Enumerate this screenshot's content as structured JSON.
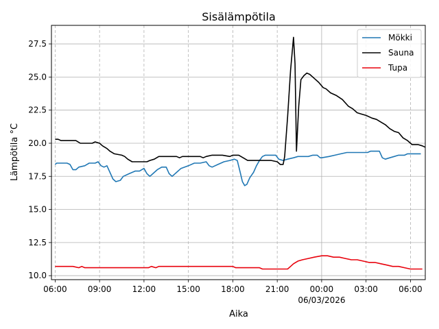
{
  "chart_data": {
    "type": "line",
    "title": "Sisälämpötila",
    "xlabel": "Aika",
    "ylabel": "Lämpötila °C",
    "x_unit": "hours from 06/03/2026 00:00 (negative = previous day)",
    "xlim": [
      -18.25,
      7.0
    ],
    "ylim": [
      9.7,
      28.9
    ],
    "grid": true,
    "legend_position": "top-right",
    "x_major_ticks": [
      {
        "x": -18,
        "label": "06:00"
      },
      {
        "x": -15,
        "label": "09:00"
      },
      {
        "x": -12,
        "label": "12:00"
      },
      {
        "x": -9,
        "label": "15:00"
      },
      {
        "x": -6,
        "label": "18:00"
      },
      {
        "x": -3,
        "label": "21:00"
      },
      {
        "x": 0,
        "label": "00:00",
        "sublabel": "06/03/2026"
      },
      {
        "x": 3,
        "label": "03:00"
      },
      {
        "x": 6,
        "label": "06:00"
      }
    ],
    "y_ticks": [
      10.0,
      12.5,
      15.0,
      17.5,
      20.0,
      22.5,
      25.0,
      27.5
    ],
    "y_tick_labels": [
      "10.0",
      "12.5",
      "15.0",
      "17.5",
      "20.0",
      "22.5",
      "25.0",
      "27.5"
    ],
    "series": [
      {
        "name": "Mökki",
        "color": "#1f77b4",
        "points": [
          [
            -18.0,
            18.4
          ],
          [
            -17.9,
            18.5
          ],
          [
            -17.2,
            18.5
          ],
          [
            -17.0,
            18.4
          ],
          [
            -16.8,
            18.0
          ],
          [
            -16.6,
            18.0
          ],
          [
            -16.4,
            18.2
          ],
          [
            -16.0,
            18.3
          ],
          [
            -15.7,
            18.5
          ],
          [
            -15.3,
            18.5
          ],
          [
            -15.1,
            18.6
          ],
          [
            -14.9,
            18.3
          ],
          [
            -14.7,
            18.2
          ],
          [
            -14.5,
            18.3
          ],
          [
            -14.3,
            17.8
          ],
          [
            -14.1,
            17.3
          ],
          [
            -13.9,
            17.1
          ],
          [
            -13.6,
            17.2
          ],
          [
            -13.4,
            17.5
          ],
          [
            -13.0,
            17.7
          ],
          [
            -12.6,
            17.9
          ],
          [
            -12.3,
            17.9
          ],
          [
            -12.0,
            18.1
          ],
          [
            -11.8,
            17.7
          ],
          [
            -11.6,
            17.5
          ],
          [
            -11.4,
            17.7
          ],
          [
            -11.1,
            18.0
          ],
          [
            -10.8,
            18.2
          ],
          [
            -10.5,
            18.2
          ],
          [
            -10.3,
            17.7
          ],
          [
            -10.1,
            17.5
          ],
          [
            -9.8,
            17.8
          ],
          [
            -9.5,
            18.1
          ],
          [
            -9.0,
            18.3
          ],
          [
            -8.6,
            18.5
          ],
          [
            -8.2,
            18.5
          ],
          [
            -7.8,
            18.6
          ],
          [
            -7.6,
            18.3
          ],
          [
            -7.4,
            18.2
          ],
          [
            -7.0,
            18.4
          ],
          [
            -6.6,
            18.6
          ],
          [
            -6.2,
            18.7
          ],
          [
            -5.9,
            18.8
          ],
          [
            -5.7,
            18.7
          ],
          [
            -5.5,
            17.8
          ],
          [
            -5.35,
            17.1
          ],
          [
            -5.2,
            16.8
          ],
          [
            -5.05,
            16.9
          ],
          [
            -4.85,
            17.4
          ],
          [
            -4.6,
            17.8
          ],
          [
            -4.4,
            18.3
          ],
          [
            -4.2,
            18.7
          ],
          [
            -4.0,
            19.0
          ],
          [
            -3.8,
            19.1
          ],
          [
            -3.1,
            19.1
          ],
          [
            -2.9,
            18.8
          ],
          [
            -2.6,
            18.7
          ],
          [
            -2.3,
            18.8
          ],
          [
            -1.9,
            18.9
          ],
          [
            -1.6,
            19.0
          ],
          [
            -0.9,
            19.0
          ],
          [
            -0.6,
            19.1
          ],
          [
            -0.3,
            19.1
          ],
          [
            -0.1,
            18.9
          ],
          [
            0.0,
            18.9
          ],
          [
            0.5,
            19.0
          ],
          [
            0.9,
            19.1
          ],
          [
            1.3,
            19.2
          ],
          [
            1.7,
            19.3
          ],
          [
            2.0,
            19.3
          ],
          [
            3.1,
            19.3
          ],
          [
            3.3,
            19.4
          ],
          [
            3.9,
            19.4
          ],
          [
            4.1,
            18.9
          ],
          [
            4.3,
            18.8
          ],
          [
            4.6,
            18.9
          ],
          [
            4.9,
            19.0
          ],
          [
            5.2,
            19.1
          ],
          [
            5.6,
            19.1
          ],
          [
            5.8,
            19.2
          ],
          [
            6.4,
            19.2
          ],
          [
            6.7,
            19.2
          ]
        ]
      },
      {
        "name": "Sauna",
        "color": "#000000",
        "points": [
          [
            -18.0,
            20.3
          ],
          [
            -17.8,
            20.3
          ],
          [
            -17.6,
            20.2
          ],
          [
            -16.6,
            20.2
          ],
          [
            -16.3,
            20.0
          ],
          [
            -15.5,
            20.0
          ],
          [
            -15.3,
            20.1
          ],
          [
            -15.0,
            20.0
          ],
          [
            -14.8,
            19.8
          ],
          [
            -14.5,
            19.6
          ],
          [
            -14.3,
            19.4
          ],
          [
            -14.0,
            19.2
          ],
          [
            -13.5,
            19.1
          ],
          [
            -13.3,
            19.0
          ],
          [
            -13.1,
            18.8
          ],
          [
            -12.8,
            18.6
          ],
          [
            -12.4,
            18.6
          ],
          [
            -11.8,
            18.6
          ],
          [
            -11.6,
            18.7
          ],
          [
            -11.3,
            18.8
          ],
          [
            -11.0,
            19.0
          ],
          [
            -9.8,
            19.0
          ],
          [
            -9.6,
            18.9
          ],
          [
            -9.4,
            19.0
          ],
          [
            -8.2,
            19.0
          ],
          [
            -8.0,
            18.9
          ],
          [
            -7.8,
            19.0
          ],
          [
            -7.4,
            19.1
          ],
          [
            -6.7,
            19.1
          ],
          [
            -6.2,
            19.0
          ],
          [
            -6.0,
            19.1
          ],
          [
            -5.6,
            19.1
          ],
          [
            -5.3,
            18.9
          ],
          [
            -5.0,
            18.7
          ],
          [
            -3.4,
            18.7
          ],
          [
            -3.0,
            18.6
          ],
          [
            -2.8,
            18.4
          ],
          [
            -2.6,
            18.4
          ],
          [
            -2.5,
            19.0
          ],
          [
            -2.3,
            22.0
          ],
          [
            -2.1,
            25.5
          ],
          [
            -1.9,
            28.0
          ],
          [
            -1.8,
            26.0
          ],
          [
            -1.7,
            19.4
          ],
          [
            -1.55,
            22.8
          ],
          [
            -1.4,
            24.8
          ],
          [
            -1.2,
            25.1
          ],
          [
            -1.0,
            25.3
          ],
          [
            -0.8,
            25.2
          ],
          [
            -0.5,
            24.9
          ],
          [
            -0.2,
            24.6
          ],
          [
            0.1,
            24.2
          ],
          [
            0.3,
            24.1
          ],
          [
            0.6,
            23.8
          ],
          [
            1.0,
            23.6
          ],
          [
            1.4,
            23.3
          ],
          [
            1.8,
            22.8
          ],
          [
            2.1,
            22.6
          ],
          [
            2.4,
            22.3
          ],
          [
            2.7,
            22.2
          ],
          [
            3.0,
            22.1
          ],
          [
            3.4,
            21.9
          ],
          [
            3.7,
            21.8
          ],
          [
            4.0,
            21.6
          ],
          [
            4.3,
            21.4
          ],
          [
            4.6,
            21.1
          ],
          [
            4.9,
            20.9
          ],
          [
            5.2,
            20.8
          ],
          [
            5.5,
            20.4
          ],
          [
            5.8,
            20.2
          ],
          [
            6.1,
            19.9
          ],
          [
            6.5,
            19.9
          ],
          [
            6.8,
            19.8
          ],
          [
            7.0,
            19.7
          ]
        ]
      },
      {
        "name": "Tupa",
        "color": "#e8000b",
        "points": [
          [
            -18.0,
            10.7
          ],
          [
            -16.8,
            10.7
          ],
          [
            -16.4,
            10.6
          ],
          [
            -16.2,
            10.7
          ],
          [
            -16.0,
            10.6
          ],
          [
            -15.0,
            10.6
          ],
          [
            -11.7,
            10.6
          ],
          [
            -11.5,
            10.7
          ],
          [
            -11.2,
            10.6
          ],
          [
            -11.0,
            10.7
          ],
          [
            -8.0,
            10.7
          ],
          [
            -6.0,
            10.7
          ],
          [
            -5.8,
            10.6
          ],
          [
            -4.2,
            10.6
          ],
          [
            -4.0,
            10.5
          ],
          [
            -2.7,
            10.5
          ],
          [
            -2.3,
            10.5
          ],
          [
            -2.1,
            10.7
          ],
          [
            -1.9,
            10.9
          ],
          [
            -1.6,
            11.1
          ],
          [
            -1.3,
            11.2
          ],
          [
            -0.9,
            11.3
          ],
          [
            -0.5,
            11.4
          ],
          [
            0.0,
            11.5
          ],
          [
            0.4,
            11.5
          ],
          [
            0.8,
            11.4
          ],
          [
            1.2,
            11.4
          ],
          [
            1.6,
            11.3
          ],
          [
            2.0,
            11.2
          ],
          [
            2.4,
            11.2
          ],
          [
            2.8,
            11.1
          ],
          [
            3.2,
            11.0
          ],
          [
            3.6,
            11.0
          ],
          [
            4.0,
            10.9
          ],
          [
            4.4,
            10.8
          ],
          [
            4.8,
            10.7
          ],
          [
            5.2,
            10.7
          ],
          [
            5.6,
            10.6
          ],
          [
            6.0,
            10.5
          ],
          [
            6.8,
            10.5
          ]
        ]
      }
    ]
  }
}
